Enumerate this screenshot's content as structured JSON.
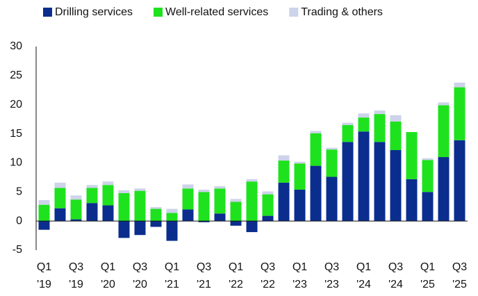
{
  "chart_data": {
    "type": "stacked_bar",
    "categories": [
      "Q1 '19",
      null,
      "Q3 '19",
      null,
      "Q1 '20",
      null,
      "Q3 '20",
      null,
      "Q1 '21",
      null,
      "Q3 '21",
      null,
      "Q1 '22",
      null,
      "Q3 '22",
      null,
      "Q1 '23",
      null,
      "Q3 '23",
      null,
      "Q1 '24",
      null,
      "Q3 '24",
      null,
      "Q1 '25",
      null,
      "Q3 '25"
    ],
    "series": [
      {
        "name": "Drilling services",
        "color": "#0b2d8e",
        "values": [
          -1.5,
          2.2,
          0.3,
          3.1,
          2.7,
          -2.9,
          -2.4,
          -1.0,
          -3.4,
          2.0,
          -0.2,
          1.3,
          -0.8,
          -1.9,
          0.9,
          6.6,
          5.4,
          9.5,
          7.6,
          13.6,
          15.4,
          13.6,
          12.2,
          7.2,
          5.0,
          11.0,
          13.9
        ]
      },
      {
        "name": "Well-related services",
        "color": "#1ee21e",
        "values": [
          2.8,
          3.5,
          3.4,
          2.6,
          3.5,
          4.8,
          5.2,
          2.1,
          1.4,
          3.6,
          5.0,
          4.3,
          3.3,
          6.8,
          3.7,
          3.8,
          4.5,
          5.6,
          4.7,
          2.9,
          2.4,
          4.8,
          4.9,
          8.1,
          5.5,
          8.9,
          9.1
        ]
      },
      {
        "name": "Trading & others",
        "color": "#cdd3ea",
        "values": [
          0.8,
          0.9,
          0.7,
          0.5,
          0.6,
          0.5,
          0.4,
          0.3,
          0.7,
          0.7,
          0.4,
          0.4,
          0.5,
          0.4,
          0.5,
          0.9,
          0.3,
          0.4,
          0.3,
          0.4,
          0.7,
          0.6,
          1.1,
          0.0,
          0.3,
          0.5,
          0.8
        ]
      }
    ],
    "ylim": [
      -5,
      30
    ],
    "yticks": [
      -5,
      0,
      5,
      10,
      15,
      20,
      25,
      30
    ],
    "grid": false,
    "legend": "top"
  }
}
